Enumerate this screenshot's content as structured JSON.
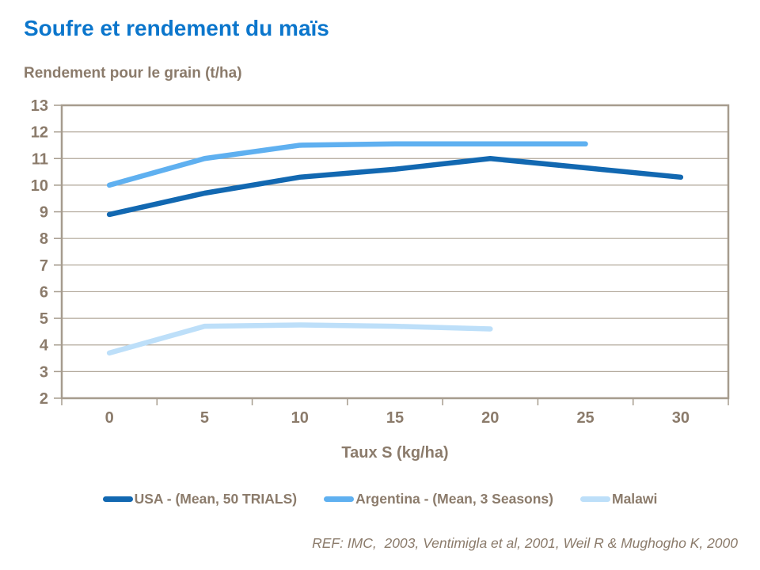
{
  "header": {
    "title": "Soufre et rendement du maïs",
    "y_axis_title": "Rendement pour le grain (t/ha)"
  },
  "footer": {
    "reference": "REF: IMC,  2003, Ventimigla et al, 2001, Weil R & Mughogho K, 2000"
  },
  "colors": {
    "title_blue": "#0B76CC",
    "text_brown": "#8B7B6B",
    "plot_border": "#A69C8E",
    "gridline": "#B1A799"
  },
  "chart_data": {
    "type": "line",
    "title": "Soufre et rendement du maïs",
    "xlabel": "Taux S (kg/ha)",
    "ylabel": "Rendement pour le grain (t/ha)",
    "categories": [
      0,
      5,
      10,
      15,
      20,
      25,
      30
    ],
    "xtick_labels": [
      "0",
      "5",
      "10",
      "15",
      "20",
      "25",
      "30"
    ],
    "yticks": [
      2,
      3,
      4,
      5,
      6,
      7,
      8,
      9,
      10,
      11,
      12,
      13
    ],
    "ylim": [
      2,
      13
    ],
    "grid": "horizontal",
    "legend_position": "bottom",
    "series": [
      {
        "key": "usa",
        "name": "USA - (Mean, 50 TRIALS)",
        "color": "#1268B1",
        "x": [
          0,
          5,
          10,
          15,
          20,
          25,
          30
        ],
        "values": [
          8.9,
          9.7,
          10.3,
          10.6,
          11.0,
          10.65,
          10.3
        ]
      },
      {
        "key": "argentina",
        "name": "Argentina - (Mean, 3 Seasons)",
        "color": "#5FB0F0",
        "x": [
          0,
          5,
          10,
          15,
          20,
          25
        ],
        "values": [
          10.0,
          11.0,
          11.5,
          11.55,
          11.55,
          11.55
        ]
      },
      {
        "key": "malawi",
        "name": "Malawi",
        "color": "#BDDFF9",
        "x": [
          0,
          5,
          10,
          15,
          20
        ],
        "values": [
          3.7,
          4.7,
          4.75,
          4.7,
          4.6
        ]
      }
    ]
  }
}
